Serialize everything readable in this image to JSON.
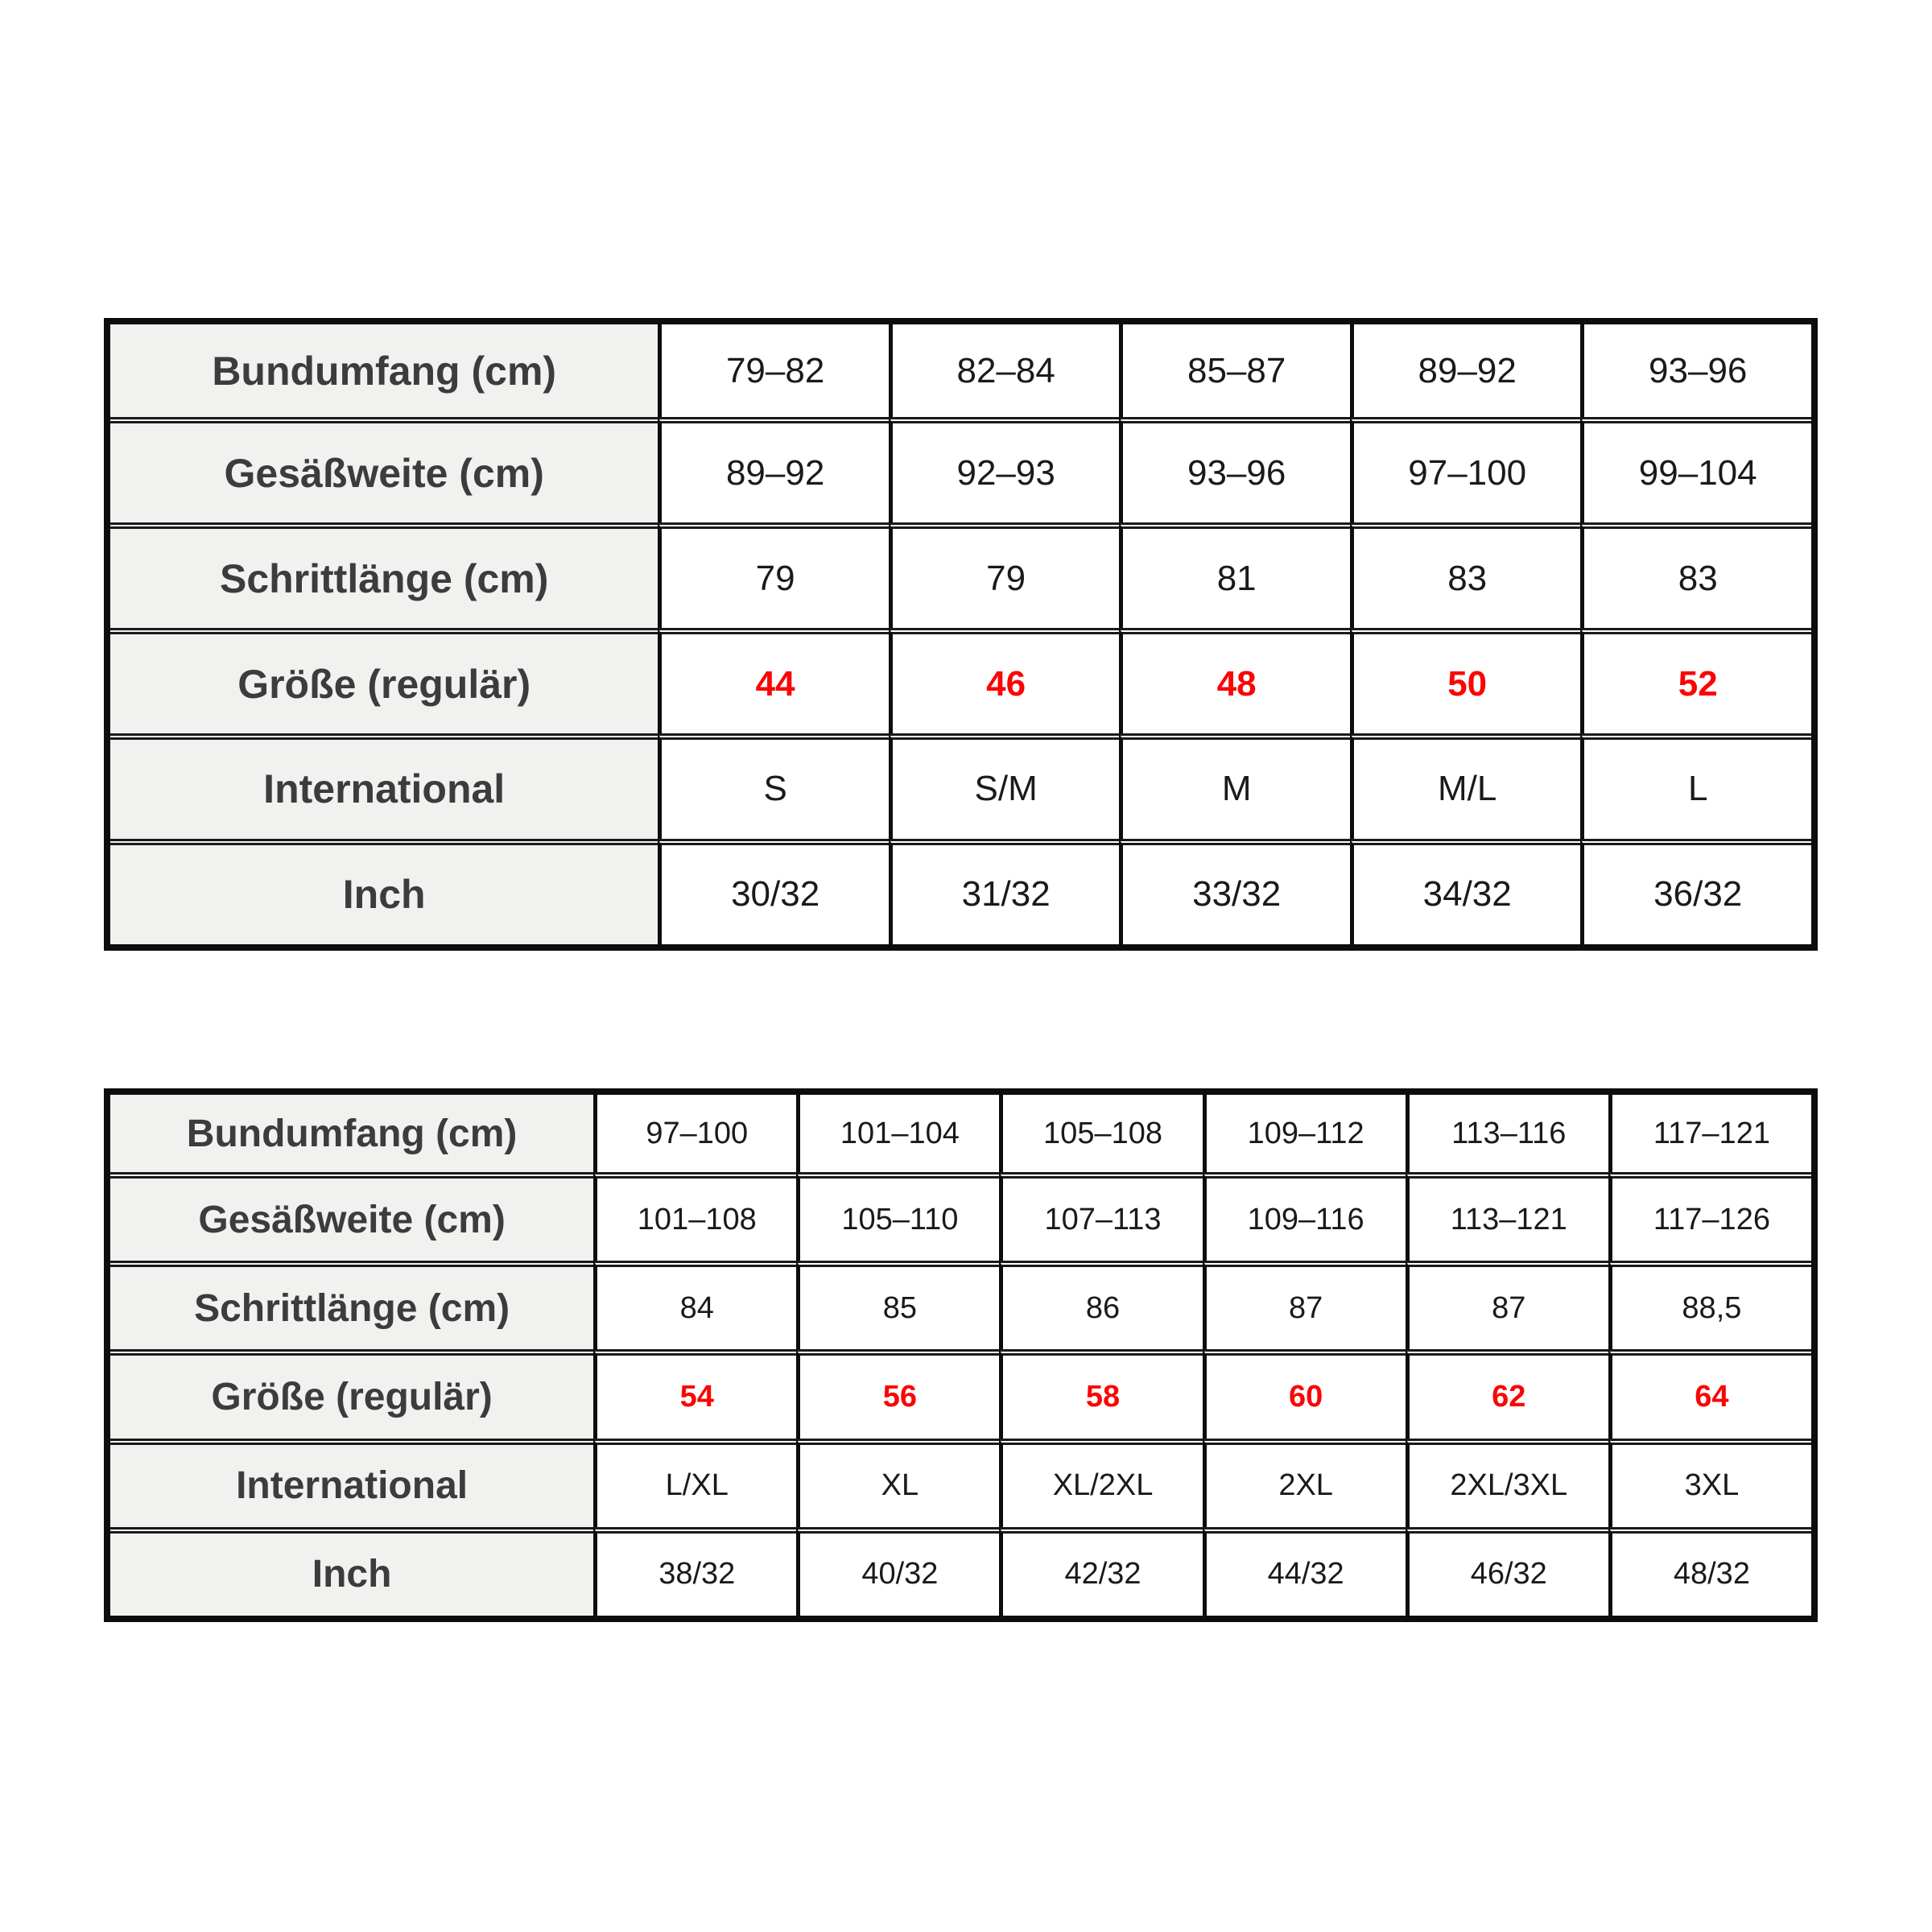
{
  "colors": {
    "page_background": "#ffffff",
    "label_cell_background": "#f1f1ef",
    "label_text": "#3c3c3c",
    "data_text": "#1a1a1a",
    "highlight_red": "#fb0505",
    "grid_border": "#0d0d0d"
  },
  "tables": [
    {
      "name": "size-table-sizes-44-52",
      "rows": [
        {
          "label": "Bundumfang (cm)",
          "style": "normal",
          "values": [
            "79–82",
            "82–84",
            "85–87",
            "89–92",
            "93–96"
          ]
        },
        {
          "label": "Gesäßweite (cm)",
          "style": "normal",
          "values": [
            "89–92",
            "92–93",
            "93–96",
            "97–100",
            "99–104"
          ]
        },
        {
          "label": "Schrittlänge (cm)",
          "style": "normal",
          "values": [
            "79",
            "79",
            "81",
            "83",
            "83"
          ]
        },
        {
          "label": "Größe (regulär)",
          "style": "red",
          "values": [
            "44",
            "46",
            "48",
            "50",
            "52"
          ]
        },
        {
          "label": "International",
          "style": "normal",
          "values": [
            "S",
            "S/M",
            "M",
            "M/L",
            "L"
          ]
        },
        {
          "label": "Inch",
          "style": "normal",
          "values": [
            "30/32",
            "31/32",
            "33/32",
            "34/32",
            "36/32"
          ]
        }
      ]
    },
    {
      "name": "size-table-sizes-54-64",
      "rows": [
        {
          "label": "Bundumfang (cm)",
          "style": "normal",
          "values": [
            "97–100",
            "101–104",
            "105–108",
            "109–112",
            "113–116",
            "117–121"
          ]
        },
        {
          "label": "Gesäßweite (cm)",
          "style": "normal",
          "values": [
            "101–108",
            "105–110",
            "107–113",
            "109–116",
            "113–121",
            "117–126"
          ]
        },
        {
          "label": "Schrittlänge (cm)",
          "style": "normal",
          "values": [
            "84",
            "85",
            "86",
            "87",
            "87",
            "88,5"
          ]
        },
        {
          "label": "Größe (regulär)",
          "style": "red",
          "values": [
            "54",
            "56",
            "58",
            "60",
            "62",
            "64"
          ]
        },
        {
          "label": "International",
          "style": "normal",
          "values": [
            "L/XL",
            "XL",
            "XL/2XL",
            "2XL",
            "2XL/3XL",
            "3XL"
          ]
        },
        {
          "label": "Inch",
          "style": "normal",
          "values": [
            "38/32",
            "40/32",
            "42/32",
            "44/32",
            "46/32",
            "48/32"
          ]
        }
      ]
    }
  ]
}
